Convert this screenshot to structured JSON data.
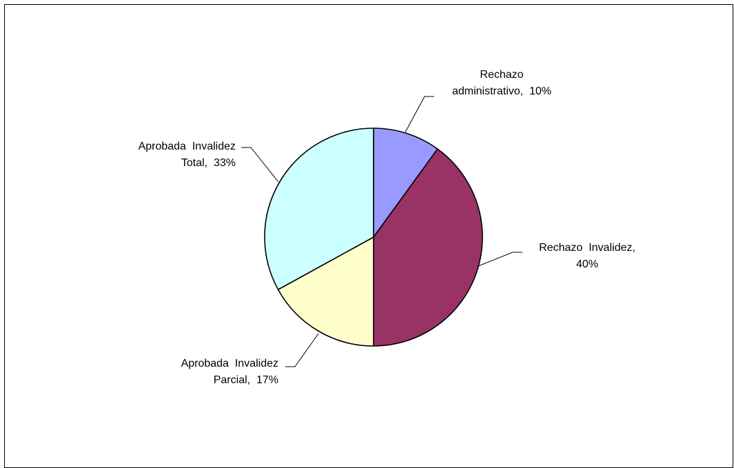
{
  "chart_data": {
    "type": "pie",
    "title": "",
    "legend": "none",
    "slices": [
      {
        "label": "Rechazo administrativo",
        "value": 10,
        "color": "#9999ff",
        "label_lines": [
          "Rechazo",
          "administrativo,  10%"
        ]
      },
      {
        "label": "Rechazo Invalidez",
        "value": 40,
        "color": "#993366",
        "label_lines": [
          "Rechazo  Invalidez,",
          "40%"
        ]
      },
      {
        "label": "Aprobada Invalidez Parcial",
        "value": 17,
        "color": "#ffffcc",
        "label_lines": [
          "Aprobada  Invalidez",
          "Parcial,  17%"
        ]
      },
      {
        "label": "Aprobada Invalidez Total",
        "value": 33,
        "color": "#ccffff",
        "label_lines": [
          "Aprobada  Invalidez",
          "Total,  33%"
        ]
      }
    ]
  }
}
